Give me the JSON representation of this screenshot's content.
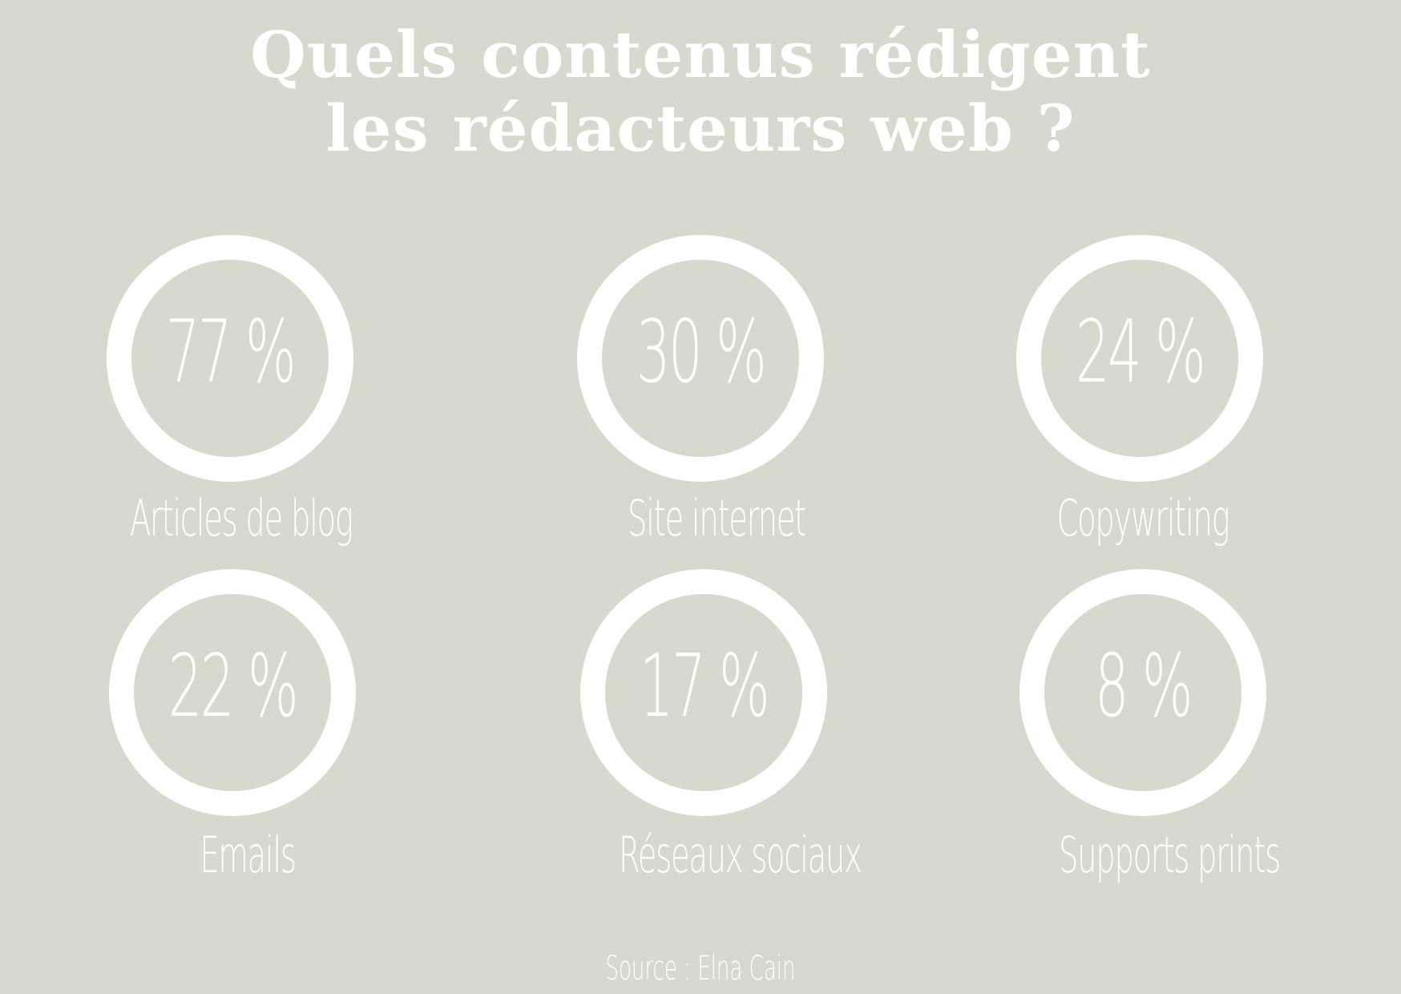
{
  "title_lines": [
    "Quels contenus rédigent",
    "les rédacteurs web ?"
  ],
  "chart_data": {
    "type": "table",
    "title": "Quels contenus rédigent les rédacteurs web ?",
    "unit": "%",
    "items": [
      {
        "label": "Articles de blog",
        "value": 77,
        "display": "77 %"
      },
      {
        "label": "Site internet",
        "value": 30,
        "display": "30 %"
      },
      {
        "label": "Copywriting",
        "value": 24,
        "display": "24 %"
      },
      {
        "label": "Emails",
        "value": 22,
        "display": "22 %"
      },
      {
        "label": "Réseaux sociaux",
        "value": 17,
        "display": "17 %"
      },
      {
        "label": "Supports prints",
        "value": 8,
        "display": "8 %"
      }
    ]
  },
  "source": "Source : Elna Cain",
  "colors": {
    "background": "#d8d8cf",
    "foreground": "#ffffff"
  }
}
